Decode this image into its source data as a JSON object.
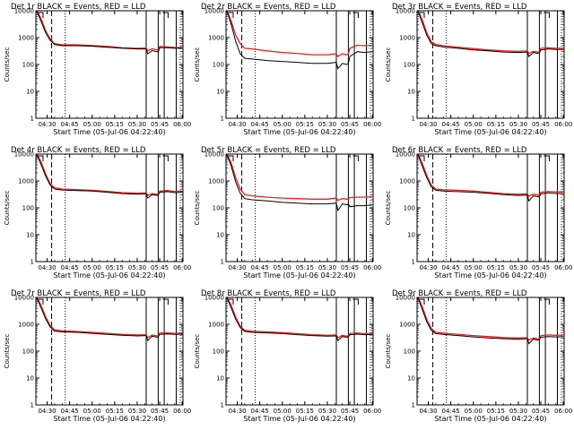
{
  "figure": {
    "line_colors": {
      "events": "#000000",
      "lld": "#e8201c"
    },
    "y_ticks": [
      1,
      10,
      100,
      1000,
      10000
    ],
    "y_tick_labels": [
      "1",
      "10",
      "100",
      "1000",
      "10000"
    ],
    "x_ticks": [
      0,
      15,
      30,
      45,
      60,
      75,
      90
    ],
    "x_tick_labels": [
      "04:30",
      "04:45",
      "05:00",
      "05:15",
      "05:30",
      "05:45",
      "06:00"
    ],
    "ylim": [
      1,
      10000
    ],
    "xlim_minutes_after_0430": [
      -7.5,
      90.5
    ],
    "markers_minutes_after_0430": {
      "dashed": [
        3
      ],
      "dotted_left": [
        12
      ],
      "solid": [
        66,
        74,
        78,
        86
      ]
    }
  },
  "chart_data": [
    {
      "type": "line",
      "title": "Det 1r  BLACK = Events, RED = LLD",
      "xlabel": "Start Time (05-Jul-06 04:22:40)",
      "ylabel": "Counts/sec",
      "xlim": [
        "04:22:30",
        "06:00:30"
      ],
      "ylim": [
        1,
        10000
      ],
      "scale": "log",
      "series": [
        {
          "name": "Events",
          "x": [
            -7,
            -4,
            -1,
            2,
            5,
            10,
            20,
            30,
            40,
            50,
            60,
            66,
            67,
            70,
            73,
            74,
            75,
            80,
            85,
            90
          ],
          "values": [
            10000,
            4000,
            1500,
            800,
            550,
            500,
            500,
            480,
            440,
            400,
            380,
            380,
            250,
            330,
            300,
            300,
            420,
            420,
            400,
            400
          ]
        },
        {
          "name": "LLD",
          "x": [
            -7,
            -4,
            -1,
            2,
            5,
            10,
            20,
            30,
            40,
            50,
            60,
            66,
            67,
            70,
            73,
            74,
            75,
            80,
            85,
            90
          ],
          "values": [
            11000,
            5000,
            1800,
            900,
            600,
            540,
            540,
            510,
            470,
            420,
            400,
            410,
            320,
            390,
            350,
            360,
            470,
            450,
            430,
            430
          ]
        }
      ]
    },
    {
      "type": "line",
      "title": "Det 2r  BLACK = Events, RED = LLD",
      "xlabel": "Start Time (05-Jul-06 04:22:40)",
      "ylabel": "Counts/sec",
      "xlim": [
        "04:22:30",
        "06:00:30"
      ],
      "ylim": [
        1,
        10000
      ],
      "scale": "log",
      "series": [
        {
          "name": "Events",
          "x": [
            -7,
            -4,
            -1,
            2,
            5,
            10,
            20,
            30,
            40,
            50,
            60,
            66,
            67,
            70,
            73,
            74,
            75,
            80,
            85,
            90
          ],
          "values": [
            10000,
            3000,
            700,
            250,
            170,
            160,
            140,
            130,
            120,
            110,
            110,
            120,
            70,
            110,
            100,
            110,
            200,
            300,
            280,
            300
          ]
        },
        {
          "name": "LLD",
          "x": [
            -7,
            -4,
            -1,
            2,
            5,
            10,
            20,
            30,
            40,
            50,
            60,
            66,
            67,
            70,
            73,
            74,
            75,
            80,
            85,
            90
          ],
          "values": [
            11000,
            4000,
            1200,
            600,
            400,
            380,
            320,
            280,
            260,
            230,
            230,
            250,
            200,
            250,
            230,
            250,
            400,
            520,
            500,
            520
          ]
        }
      ]
    },
    {
      "type": "line",
      "title": "Det 3r  BLACK = Events, RED = LLD",
      "xlabel": "Start Time (05-Jul-06 04:22:40)",
      "ylabel": "Counts/sec",
      "xlim": [
        "04:22:30",
        "06:00:30"
      ],
      "ylim": [
        1,
        10000
      ],
      "scale": "log",
      "series": [
        {
          "name": "Events",
          "x": [
            -7,
            -4,
            -1,
            2,
            5,
            10,
            20,
            30,
            40,
            50,
            60,
            66,
            67,
            70,
            73,
            74,
            75,
            80,
            85,
            90
          ],
          "values": [
            10000,
            3500,
            1200,
            600,
            500,
            450,
            400,
            350,
            320,
            290,
            280,
            290,
            200,
            280,
            260,
            270,
            350,
            380,
            360,
            360
          ]
        },
        {
          "name": "LLD",
          "x": [
            -7,
            -4,
            -1,
            2,
            5,
            10,
            20,
            30,
            40,
            50,
            60,
            66,
            67,
            70,
            73,
            74,
            75,
            80,
            85,
            90
          ],
          "values": [
            11000,
            4500,
            1500,
            700,
            560,
            500,
            440,
            390,
            350,
            320,
            310,
            320,
            260,
            310,
            290,
            300,
            400,
            420,
            400,
            400
          ]
        }
      ]
    },
    {
      "type": "line",
      "title": "Det 4r  BLACK = Events, RED = LLD",
      "xlabel": "Start Time (05-Jul-06 04:22:40)",
      "ylabel": "Counts/sec",
      "xlim": [
        "04:22:30",
        "06:00:30"
      ],
      "ylim": [
        1,
        10000
      ],
      "scale": "log",
      "series": [
        {
          "name": "Events",
          "x": [
            -7,
            -4,
            -1,
            2,
            5,
            10,
            20,
            30,
            40,
            50,
            60,
            66,
            67,
            70,
            73,
            74,
            75,
            80,
            85,
            90
          ],
          "values": [
            10000,
            4000,
            1500,
            700,
            500,
            460,
            440,
            420,
            380,
            340,
            320,
            330,
            230,
            310,
            290,
            300,
            380,
            400,
            370,
            380
          ]
        },
        {
          "name": "LLD",
          "x": [
            -7,
            -4,
            -1,
            2,
            5,
            10,
            20,
            30,
            40,
            50,
            60,
            66,
            67,
            70,
            73,
            74,
            75,
            80,
            85,
            90
          ],
          "values": [
            11000,
            5000,
            1800,
            800,
            560,
            500,
            480,
            450,
            410,
            370,
            350,
            360,
            290,
            340,
            320,
            330,
            420,
            440,
            410,
            420
          ]
        }
      ]
    },
    {
      "type": "line",
      "title": "Det 5r  BLACK = Events, RED = LLD",
      "xlabel": "Start Time (05-Jul-06 04:22:40)",
      "ylabel": "Counts/sec",
      "xlim": [
        "04:22:30",
        "06:00:30"
      ],
      "ylim": [
        1,
        10000
      ],
      "scale": "log",
      "series": [
        {
          "name": "Events",
          "x": [
            -7,
            -4,
            -1,
            2,
            5,
            10,
            20,
            30,
            40,
            50,
            60,
            66,
            67,
            70,
            73,
            74,
            75,
            80,
            85,
            90
          ],
          "values": [
            10000,
            3500,
            900,
            350,
            220,
            200,
            180,
            160,
            150,
            140,
            140,
            150,
            80,
            140,
            130,
            140,
            110,
            120,
            120,
            130
          ]
        },
        {
          "name": "LLD",
          "x": [
            -7,
            -4,
            -1,
            2,
            5,
            10,
            20,
            30,
            40,
            50,
            60,
            66,
            67,
            70,
            73,
            74,
            75,
            80,
            85,
            90
          ],
          "values": [
            11000,
            4500,
            1300,
            500,
            310,
            280,
            250,
            230,
            220,
            210,
            210,
            230,
            190,
            220,
            210,
            220,
            240,
            250,
            250,
            260
          ]
        }
      ]
    },
    {
      "type": "line",
      "title": "Det 6r  BLACK = Events, RED = LLD",
      "xlabel": "Start Time (05-Jul-06 04:22:40)",
      "ylabel": "Counts/sec",
      "xlim": [
        "04:22:30",
        "06:00:30"
      ],
      "ylim": [
        1,
        10000
      ],
      "scale": "log",
      "series": [
        {
          "name": "Events",
          "x": [
            -7,
            -4,
            -1,
            2,
            5,
            10,
            20,
            30,
            40,
            50,
            60,
            66,
            67,
            70,
            73,
            74,
            75,
            80,
            85,
            90
          ],
          "values": [
            10000,
            3500,
            1300,
            600,
            450,
            420,
            400,
            380,
            350,
            310,
            290,
            300,
            180,
            280,
            260,
            270,
            330,
            360,
            340,
            350
          ]
        },
        {
          "name": "LLD",
          "x": [
            -7,
            -4,
            -1,
            2,
            5,
            10,
            20,
            30,
            40,
            50,
            60,
            66,
            67,
            70,
            73,
            74,
            75,
            80,
            85,
            90
          ],
          "values": [
            11000,
            4500,
            1600,
            700,
            500,
            470,
            450,
            420,
            380,
            340,
            320,
            330,
            270,
            320,
            300,
            310,
            380,
            410,
            390,
            400
          ]
        }
      ]
    },
    {
      "type": "line",
      "title": "Det 7r  BLACK = Events, RED = LLD",
      "xlabel": "Start Time (05-Jul-06 04:22:40)",
      "ylabel": "Counts/sec",
      "xlim": [
        "04:22:30",
        "06:00:30"
      ],
      "ylim": [
        1,
        10000
      ],
      "scale": "log",
      "series": [
        {
          "name": "Events",
          "x": [
            -7,
            -4,
            -1,
            2,
            5,
            10,
            20,
            30,
            40,
            50,
            60,
            66,
            67,
            70,
            73,
            74,
            75,
            80,
            85,
            90
          ],
          "values": [
            10000,
            4000,
            1600,
            800,
            560,
            520,
            500,
            460,
            420,
            390,
            370,
            380,
            250,
            360,
            330,
            340,
            420,
            440,
            420,
            430
          ]
        },
        {
          "name": "LLD",
          "x": [
            -7,
            -4,
            -1,
            2,
            5,
            10,
            20,
            30,
            40,
            50,
            60,
            66,
            67,
            70,
            73,
            74,
            75,
            80,
            85,
            90
          ],
          "values": [
            11000,
            5000,
            1900,
            900,
            620,
            570,
            540,
            500,
            460,
            420,
            400,
            410,
            320,
            400,
            370,
            380,
            470,
            480,
            460,
            470
          ]
        }
      ]
    },
    {
      "type": "line",
      "title": "Det 8r  BLACK = Events, RED = LLD",
      "xlabel": "Start Time (05-Jul-06 04:22:40)",
      "ylabel": "Counts/sec",
      "xlim": [
        "04:22:30",
        "06:00:30"
      ],
      "ylim": [
        1,
        10000
      ],
      "scale": "log",
      "series": [
        {
          "name": "Events",
          "x": [
            -7,
            -4,
            -1,
            2,
            5,
            10,
            20,
            30,
            40,
            50,
            60,
            66,
            67,
            70,
            73,
            74,
            75,
            80,
            85,
            90
          ],
          "values": [
            10000,
            4000,
            1500,
            750,
            540,
            500,
            480,
            450,
            410,
            380,
            360,
            370,
            250,
            350,
            330,
            340,
            410,
            430,
            410,
            420
          ]
        },
        {
          "name": "LLD",
          "x": [
            -7,
            -4,
            -1,
            2,
            5,
            10,
            20,
            30,
            40,
            50,
            60,
            66,
            67,
            70,
            73,
            74,
            75,
            80,
            85,
            90
          ],
          "values": [
            11000,
            5000,
            1800,
            850,
            600,
            550,
            520,
            490,
            450,
            410,
            390,
            400,
            320,
            390,
            360,
            370,
            460,
            470,
            450,
            460
          ]
        }
      ]
    },
    {
      "type": "line",
      "title": "Det 9r  BLACK = Events, RED = LLD",
      "xlabel": "Start Time (05-Jul-06 04:22:40)",
      "ylabel": "Counts/sec",
      "xlim": [
        "04:22:30",
        "06:00:30"
      ],
      "ylim": [
        1,
        10000
      ],
      "scale": "log",
      "series": [
        {
          "name": "Events",
          "x": [
            -7,
            -4,
            -1,
            2,
            5,
            10,
            20,
            30,
            40,
            50,
            60,
            66,
            67,
            70,
            73,
            74,
            75,
            80,
            85,
            90
          ],
          "values": [
            10000,
            3500,
            1200,
            600,
            450,
            420,
            380,
            340,
            310,
            290,
            280,
            290,
            190,
            280,
            260,
            270,
            330,
            350,
            340,
            350
          ]
        },
        {
          "name": "LLD",
          "x": [
            -7,
            -4,
            -1,
            2,
            5,
            10,
            20,
            30,
            40,
            50,
            60,
            66,
            67,
            70,
            73,
            74,
            75,
            80,
            85,
            90
          ],
          "values": [
            11000,
            4500,
            1500,
            700,
            500,
            470,
            420,
            380,
            350,
            320,
            310,
            320,
            260,
            310,
            290,
            300,
            380,
            400,
            390,
            400
          ]
        }
      ]
    }
  ]
}
